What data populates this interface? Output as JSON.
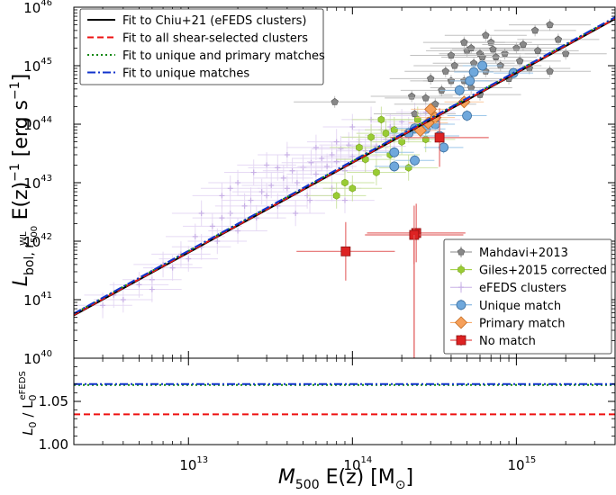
{
  "chart_data": [
    {
      "type": "scatter",
      "panel": "main",
      "xlabel_parts": {
        "sym": "M",
        "sub": "500",
        "mid": " E(z)  [M",
        "unit_sub": "⊙",
        "end": "]"
      },
      "ylabel_parts": {
        "sym": "L",
        "sub": "bol, r",
        "subsub": "500",
        "subsup": "WL",
        "mid": " E(z)",
        "sup": "−1",
        "end": "  [erg s",
        "sup2": "−1",
        "end2": "]"
      },
      "x_scale": "log",
      "y_scale": "log",
      "xlim": [
        2000000000000.0,
        4000000000000000.0
      ],
      "ylim": [
        1e+40,
        1e+46
      ],
      "xticks": [
        {
          "value": 10000000000000.0,
          "base": "10",
          "exp": "13"
        },
        {
          "value": 100000000000000.0,
          "base": "10",
          "exp": "14"
        },
        {
          "value": 1000000000000000.0,
          "base": "10",
          "exp": "15"
        }
      ],
      "yticks": [
        {
          "value": 1e+40,
          "base": "10",
          "exp": "40"
        },
        {
          "value": 1e+41,
          "base": "10",
          "exp": "41"
        },
        {
          "value": 1e+42,
          "base": "10",
          "exp": "42"
        },
        {
          "value": 1e+43,
          "base": "10",
          "exp": "43"
        },
        {
          "value": 1e+44,
          "base": "10",
          "exp": "44"
        },
        {
          "value": 1e+45,
          "base": "10",
          "exp": "45"
        },
        {
          "value": 1e+46,
          "base": "10",
          "exp": "46"
        }
      ],
      "fit_lines": [
        {
          "name": "Fit to Chiu+21 (eFEDS clusters)",
          "color": "#000000",
          "style": "solid",
          "x": [
            2000000000000.0,
            4000000000000000.0
          ],
          "y": [
            5.4e+40,
            6.3e+45
          ]
        },
        {
          "name": "Fit to all shear-selected clusters",
          "color": "#ee1111",
          "style": "dashed",
          "x": [
            2000000000000.0,
            4000000000000000.0
          ],
          "y": [
            5.5e+40,
            6.4e+45
          ]
        },
        {
          "name": "Fit to unique and primary matches",
          "color": "#118811",
          "style": "dotted",
          "x": [
            2000000000000.0,
            4000000000000000.0
          ],
          "y": [
            5.75e+40,
            6.7e+45
          ]
        },
        {
          "name": "Fit to unique matches",
          "color": "#1133cc",
          "style": "dashdot",
          "x": [
            2000000000000.0,
            4000000000000000.0
          ],
          "y": [
            5.8e+40,
            6.75e+45
          ]
        }
      ],
      "series": [
        {
          "name": "Mahdavi+2013",
          "marker": "pentagon",
          "color": "#888888",
          "points": [
            [
              650000000000000.0,
              3.3e+45
            ],
            [
              700000000000000.0,
              2.5e+45
            ],
            [
              850000000000000.0,
              1.6e+45
            ],
            [
              1000000000000000.0,
              2e+45
            ],
            [
              1100000000000000.0,
              2.3e+45
            ],
            [
              1300000000000000.0,
              4e+45
            ],
            [
              1600000000000000.0,
              5e+45
            ],
            [
              500000000000000.0,
              1.8e+45
            ],
            [
              600000000000000.0,
              1.6e+45
            ],
            [
              750000000000000.0,
              1.4e+45
            ],
            [
              550000000000000.0,
              1.1e+45
            ],
            [
              650000000000000.0,
              8e+44
            ],
            [
              800000000000000.0,
              1e+45
            ],
            [
              1200000000000000.0,
              9e+44
            ],
            [
              1600000000000000.0,
              8e+44
            ],
            [
              2000000000000000.0,
              1.6e+45
            ],
            [
              1800000000000000.0,
              2.8e+45
            ],
            [
              480000000000000.0,
              2.5e+45
            ],
            [
              420000000000000.0,
              1e+45
            ],
            [
              370000000000000.0,
              8e+44
            ],
            [
              480000000000000.0,
              5.5e+44
            ],
            [
              530000000000000.0,
              4.2e+44
            ],
            [
              600000000000000.0,
              3.2e+44
            ],
            [
              350000000000000.0,
              3.8e+44
            ],
            [
              400000000000000.0,
              5.5e+44
            ],
            [
              230000000000000.0,
              3e+44
            ],
            [
              320000000000000.0,
              2.2e+44
            ],
            [
              78000000000000.0,
              2.4e+44
            ],
            [
              240000000000000.0,
              1.5e+44
            ],
            [
              900000000000000.0,
              6e+44
            ],
            [
              1050000000000000.0,
              1.2e+45
            ],
            [
              1350000000000000.0,
              1.8e+45
            ],
            [
              530000000000000.0,
              2e+45
            ],
            [
              620000000000000.0,
              1.4e+45
            ],
            [
              720000000000000.0,
              1.9e+45
            ],
            [
              400000000000000.0,
              1.5e+45
            ],
            [
              300000000000000.0,
              6e+44
            ],
            [
              280000000000000.0,
              2.8e+44
            ]
          ]
        },
        {
          "name": "Giles+2015 corrected",
          "marker": "hexagon",
          "color": "#99cc33",
          "points": [
            [
              150000000000000.0,
              1.2e+44
            ],
            [
              200000000000000.0,
              5e+43
            ],
            [
              180000000000000.0,
              8e+43
            ],
            [
              90000000000000.0,
              1e+43
            ],
            [
              100000000000000.0,
              8e+42
            ],
            [
              120000000000000.0,
              2.5e+43
            ],
            [
              80000000000000.0,
              6e+42
            ],
            [
              140000000000000.0,
              1.5e+43
            ],
            [
              170000000000000.0,
              3e+43
            ],
            [
              220000000000000.0,
              1.8e+43
            ],
            [
              250000000000000.0,
              1.2e+44
            ],
            [
              130000000000000.0,
              6e+43
            ],
            [
              160000000000000.0,
              7e+43
            ],
            [
              280000000000000.0,
              5.5e+43
            ],
            [
              110000000000000.0,
              4e+43
            ]
          ]
        },
        {
          "name": "eFEDS clusters",
          "marker": "plus",
          "color": "#c8b0e6",
          "points": [
            [
              3000000000000.0,
              8e+40
            ],
            [
              3500000000000.0,
              1.2e+41
            ],
            [
              4000000000000.0,
              1e+41
            ],
            [
              5000000000000.0,
              1.8e+41
            ],
            [
              6000000000000.0,
              2.2e+41
            ],
            [
              6000000000000.0,
              1.5e+41
            ],
            [
              7000000000000.0,
              4e+41
            ],
            [
              8000000000000.0,
              3.5e+41
            ],
            [
              9000000000000.0,
              6e+41
            ],
            [
              10000000000000.0,
              5e+41
            ],
            [
              11000000000000.0,
              1.2e+42
            ],
            [
              12000000000000.0,
              8e+41
            ],
            [
              14000000000000.0,
              1.8e+42
            ],
            [
              15000000000000.0,
              1e+42
            ],
            [
              16000000000000.0,
              2.5e+42
            ],
            [
              18000000000000.0,
              3e+42
            ],
            [
              20000000000000.0,
              1.5e+42
            ],
            [
              22000000000000.0,
              4e+42
            ],
            [
              24000000000000.0,
              5e+42
            ],
            [
              26000000000000.0,
              2.5e+42
            ],
            [
              28000000000000.0,
              7e+42
            ],
            [
              30000000000000.0,
              6e+42
            ],
            [
              32000000000000.0,
              9e+42
            ],
            [
              35000000000000.0,
              4e+42
            ],
            [
              38000000000000.0,
              1.2e+43
            ],
            [
              40000000000000.0,
              8e+42
            ],
            [
              43000000000000.0,
              1.6e+43
            ],
            [
              46000000000000.0,
              1e+43
            ],
            [
              50000000000000.0,
              1.8e+43
            ],
            [
              53000000000000.0,
              6e+42
            ],
            [
              56000000000000.0,
              2.2e+43
            ],
            [
              60000000000000.0,
              1.4e+43
            ],
            [
              65000000000000.0,
              2.6e+43
            ],
            [
              70000000000000.0,
              1.9e+43
            ],
            [
              75000000000000.0,
              3e+43
            ],
            [
              80000000000000.0,
              2.3e+43
            ],
            [
              85000000000000.0,
              3.8e+43
            ],
            [
              90000000000000.0,
              1.6e+43
            ],
            [
              95000000000000.0,
              4.4e+43
            ],
            [
              100000000000000.0,
              2.8e+43
            ],
            [
              110000000000000.0,
              5e+43
            ],
            [
              120000000000000.0,
              3.5e+43
            ],
            [
              130000000000000.0,
              6e+43
            ],
            [
              140000000000000.0,
              4.2e+43
            ],
            [
              150000000000000.0,
              8e+43
            ],
            [
              160000000000000.0,
              5.5e+43
            ],
            [
              170000000000000.0,
              9e+43
            ],
            [
              180000000000000.0,
              6.5e+43
            ],
            [
              200000000000000.0,
              1.1e+44
            ],
            [
              220000000000000.0,
              8e+43
            ],
            [
              240000000000000.0,
              1.4e+44
            ],
            [
              260000000000000.0,
              1e+44
            ],
            [
              280000000000000.0,
              1.6e+44
            ],
            [
              300000000000000.0,
              1.2e+44
            ],
            [
              25000000000000.0,
              1.5e+43
            ],
            [
              30000000000000.0,
              2e+43
            ],
            [
              40000000000000.0,
              3e+43
            ],
            [
              12000000000000.0,
              3e+42
            ],
            [
              18000000000000.0,
              8e+42
            ],
            [
              55000000000000.0,
              5e+42
            ],
            [
              75000000000000.0,
              8e+42
            ],
            [
              90000000000000.0,
              5e+42
            ],
            [
              45000000000000.0,
              3e+42
            ],
            [
              60000000000000.0,
              4e+43
            ],
            [
              80000000000000.0,
              5e+43
            ],
            [
              100000000000000.0,
              9e+43
            ],
            [
              130000000000000.0,
              1.2e+44
            ],
            [
              35000000000000.0,
              1.8e+43
            ],
            [
              20000000000000.0,
              1e+43
            ],
            [
              16000000000000.0,
              6e+42
            ]
          ]
        },
        {
          "name": "Unique match",
          "marker": "circle",
          "color": "#6fa8dc",
          "points": [
            [
              620000000000000.0,
              1e+45
            ],
            [
              520000000000000.0,
              5.5e+44
            ],
            [
              960000000000000.0,
              7.5e+44
            ],
            [
              550000000000000.0,
              7.8e+44
            ],
            [
              450000000000000.0,
              3.8e+44
            ],
            [
              320000000000000.0,
              1e+44
            ],
            [
              280000000000000.0,
              8.3e+43
            ],
            [
              340000000000000.0,
              6.3e+43
            ],
            [
              360000000000000.0,
              4e+43
            ],
            [
              500000000000000.0,
              1.4e+44
            ],
            [
              240000000000000.0,
              8.5e+43
            ],
            [
              220000000000000.0,
              7e+43
            ],
            [
              180000000000000.0,
              3.3e+43
            ],
            [
              180000000000000.0,
              1.9e+43
            ],
            [
              240000000000000.0,
              2.4e+43
            ]
          ]
        },
        {
          "name": "Primary match",
          "marker": "diamond",
          "color": "#f6a05a",
          "points": [
            [
              300000000000000.0,
              1.8e+44
            ],
            [
              320000000000000.0,
              1.3e+44
            ],
            [
              290000000000000.0,
              1.05e+44
            ],
            [
              480000000000000.0,
              2.4e+44
            ],
            [
              260000000000000.0,
              7.8e+43
            ]
          ]
        },
        {
          "name": "No match",
          "marker": "square",
          "color": "#dd2222",
          "points": [
            [
              340000000000000.0,
              5.9e+43
            ],
            [
              91000000000000.0,
              6.7e+41
            ],
            [
              245000000000000.0,
              1.38e+42
            ],
            [
              238000000000000.0,
              1.28e+42
            ]
          ]
        }
      ]
    },
    {
      "type": "line",
      "panel": "ratio",
      "ylabel_parts": {
        "sym": "L",
        "sub": "0",
        "mid": " / L",
        "sub2": "0",
        "sup2": "eFEDS"
      },
      "ylim": [
        1.0,
        1.1
      ],
      "yticks": [
        "1.00",
        "1.05"
      ],
      "ytick_values": [
        1.0,
        1.05
      ],
      "ratios": [
        {
          "name": "Fit to all shear-selected clusters",
          "color": "#ee1111",
          "style": "dashed",
          "value": 1.035
        },
        {
          "name": "Fit to unique and primary matches",
          "color": "#118811",
          "style": "dotted",
          "value": 1.069
        },
        {
          "name": "Fit to unique matches",
          "color": "#1133cc",
          "style": "dashdot",
          "value": 1.07
        }
      ]
    }
  ],
  "legend_top": [
    {
      "label": "Fit to Chiu+21 (eFEDS clusters)",
      "color": "#000000",
      "style": "solid"
    },
    {
      "label": "Fit to all shear-selected clusters",
      "color": "#ee1111",
      "style": "dashed"
    },
    {
      "label": "Fit to unique and primary matches",
      "color": "#118811",
      "style": "dotted"
    },
    {
      "label": "Fit to unique matches",
      "color": "#1133cc",
      "style": "dashdot"
    }
  ],
  "legend_bottom": [
    {
      "label": "Mahdavi+2013",
      "marker": "pentagon",
      "color": "#888888"
    },
    {
      "label": "Giles+2015 corrected",
      "marker": "hexagon",
      "color": "#99cc33"
    },
    {
      "label": "eFEDS clusters",
      "marker": "plus",
      "color": "#c8b0e6"
    },
    {
      "label": "Unique match",
      "marker": "circle",
      "color": "#6fa8dc"
    },
    {
      "label": "Primary match",
      "marker": "diamond",
      "color": "#f6a05a"
    },
    {
      "label": "No match",
      "marker": "square",
      "color": "#dd2222"
    }
  ]
}
